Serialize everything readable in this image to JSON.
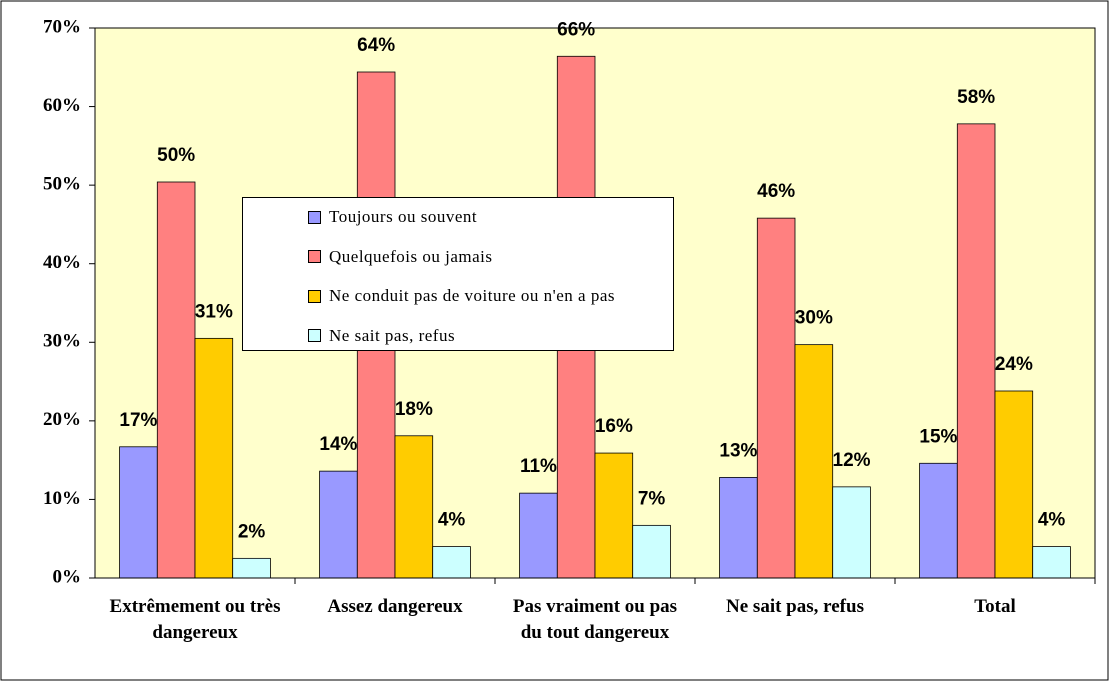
{
  "chart_data": {
    "type": "bar",
    "categories": [
      "Extrêmement ou très dangereux",
      "Assez dangereux",
      "Pas vraiment ou pas du tout dangereux",
      "Ne sait pas, refus",
      "Total"
    ],
    "series": [
      {
        "name": "Toujours ou souvent",
        "color": "#9999ff",
        "values": [
          16.7,
          13.6,
          10.8,
          12.8,
          14.6
        ],
        "value_labels": [
          "17%",
          "14%",
          "11%",
          "13%",
          "15%"
        ]
      },
      {
        "name": "Quelquefois ou jamais",
        "color": "#ff8080",
        "values": [
          50.4,
          64.4,
          66.4,
          45.8,
          57.8
        ],
        "value_labels": [
          "50%",
          "64%",
          "66%",
          "46%",
          "58%"
        ]
      },
      {
        "name": "Ne conduit pas de voiture ou n'en a pas",
        "color": "#ffcc00",
        "values": [
          30.5,
          18.1,
          15.9,
          29.7,
          23.8
        ],
        "value_labels": [
          "31%",
          "18%",
          "16%",
          "30%",
          "24%"
        ]
      },
      {
        "name": "Ne sait pas, refus",
        "color": "#ccffff",
        "values": [
          2.5,
          4.0,
          6.7,
          11.6,
          4.0
        ],
        "value_labels": [
          "2%",
          "4%",
          "7%",
          "12%",
          "4%"
        ]
      }
    ],
    "ylim": [
      0,
      70
    ],
    "yticks": [
      {
        "value": 0,
        "label": "0%"
      },
      {
        "value": 10,
        "label": "10%"
      },
      {
        "value": 20,
        "label": "20%"
      },
      {
        "value": 30,
        "label": "30%"
      },
      {
        "value": 40,
        "label": "40%"
      },
      {
        "value": 50,
        "label": "50%"
      },
      {
        "value": 60,
        "label": "60%"
      },
      {
        "value": 70,
        "label": "70%"
      }
    ],
    "grid": false,
    "legend": "center"
  }
}
